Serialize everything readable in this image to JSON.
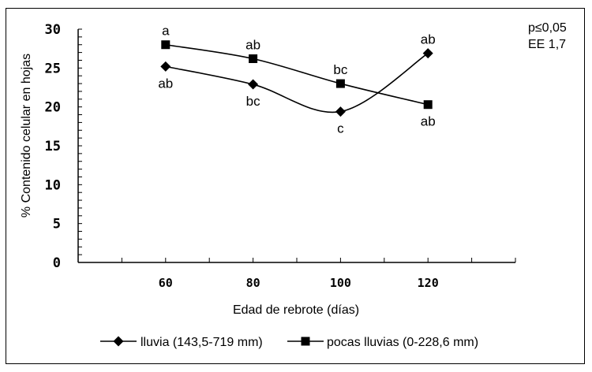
{
  "chart_data": {
    "type": "line",
    "x": [
      60,
      80,
      100,
      120
    ],
    "xlim": [
      40,
      140
    ],
    "ylim": [
      0,
      30
    ],
    "yticks": [
      0,
      5,
      10,
      15,
      20,
      25,
      30
    ],
    "xticks": [
      60,
      80,
      100,
      120
    ],
    "xlabel": "Edad de rebrote (días)",
    "ylabel": "% Contenido celular en hojas",
    "stats": [
      "p≤0,05",
      "EE 1,7"
    ],
    "series": [
      {
        "name": "lluvia (143,5-719 mm)",
        "marker": "diamond",
        "values": [
          25.2,
          22.9,
          19.4,
          26.9
        ],
        "annotations": [
          "ab",
          "bc",
          "c",
          "ab"
        ],
        "annotation_position": [
          "below",
          "below",
          "below",
          "above"
        ]
      },
      {
        "name": "pocas lluvias (0-228,6 mm)",
        "marker": "square",
        "values": [
          28.0,
          26.2,
          23.0,
          20.3
        ],
        "annotations": [
          "a",
          "ab",
          "bc",
          "ab"
        ],
        "annotation_position": [
          "above",
          "above",
          "above",
          "below"
        ]
      }
    ],
    "legend_position": "bottom"
  },
  "colors": {
    "line": "#000000",
    "background": "#ffffff"
  }
}
